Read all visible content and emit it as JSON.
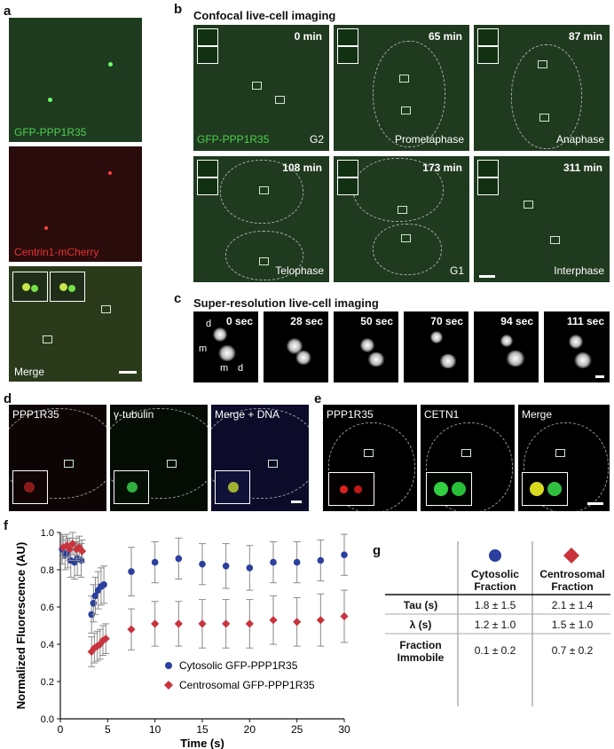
{
  "panels": {
    "a": "a",
    "b": "b",
    "c": "c",
    "d": "d",
    "e": "e",
    "f": "f",
    "g": "g"
  },
  "panel_a": {
    "labels": [
      "GFP-PPP1R35",
      "Centrin1-mCherry",
      "Merge"
    ]
  },
  "panel_b": {
    "title": "Confocal live-cell imaging",
    "channel_label": "GFP-PPP1R35",
    "frames": [
      {
        "time": "0 min",
        "phase": "G2"
      },
      {
        "time": "65 min",
        "phase": "Prometaphase"
      },
      {
        "time": "87 min",
        "phase": "Anaphase"
      },
      {
        "time": "108 min",
        "phase": "Telophase"
      },
      {
        "time": "173 min",
        "phase": "G1"
      },
      {
        "time": "311 min",
        "phase": "Interphase"
      }
    ]
  },
  "panel_c": {
    "title": "Super-resolution live-cell imaging",
    "frames": [
      "0 sec",
      "28 sec",
      "50 sec",
      "70 sec",
      "94 sec",
      "111 sec"
    ],
    "markers": {
      "d": "d",
      "m": "m"
    }
  },
  "panel_d": {
    "labels": [
      "PPP1R35",
      "γ-tubulin",
      "Merge + DNA"
    ]
  },
  "panel_e": {
    "labels": [
      "PPP1R35",
      "CETN1",
      "Merge"
    ]
  },
  "chart_data": {
    "type": "scatter",
    "xlabel": "Time (s)",
    "ylabel": "Normalized Fluorescence (AU)",
    "xlim": [
      0,
      30
    ],
    "ylim": [
      0.0,
      1.0
    ],
    "xticks": [
      0,
      5,
      10,
      15,
      20,
      25,
      30
    ],
    "yticks": [
      0.0,
      0.2,
      0.4,
      0.6,
      0.8,
      1.0
    ],
    "legend_position": "bottom-right",
    "series": [
      {
        "name": "Cytosolic GFP-PPP1R35",
        "color": "#2b3f9e",
        "marker": "circle",
        "x": [
          0.2,
          0.5,
          0.8,
          1.1,
          1.5,
          1.8,
          2.2,
          3.3,
          3.5,
          3.7,
          4.0,
          4.3,
          4.6,
          7.5,
          10,
          12.5,
          15,
          17.5,
          20,
          22.5,
          25,
          27.5,
          30
        ],
        "y": [
          0.91,
          0.88,
          0.89,
          0.85,
          0.84,
          0.86,
          0.85,
          0.56,
          0.62,
          0.66,
          0.69,
          0.71,
          0.72,
          0.79,
          0.84,
          0.86,
          0.83,
          0.82,
          0.81,
          0.84,
          0.84,
          0.85,
          0.88
        ],
        "err": [
          0.08,
          0.08,
          0.08,
          0.09,
          0.09,
          0.09,
          0.09,
          0.1,
          0.1,
          0.1,
          0.1,
          0.1,
          0.1,
          0.13,
          0.11,
          0.11,
          0.11,
          0.12,
          0.12,
          0.11,
          0.11,
          0.11,
          0.11
        ]
      },
      {
        "name": "Centrosomal GFP-PPP1R35",
        "color": "#c8333d",
        "marker": "diamond",
        "x": [
          0.3,
          0.7,
          1.0,
          1.3,
          1.7,
          2.0,
          2.3,
          3.3,
          3.6,
          3.9,
          4.2,
          4.5,
          4.8,
          7.5,
          10,
          12.5,
          15,
          17.5,
          20,
          22.5,
          25,
          27.5,
          30
        ],
        "y": [
          0.92,
          0.93,
          0.91,
          0.94,
          0.91,
          0.92,
          0.9,
          0.36,
          0.38,
          0.39,
          0.4,
          0.42,
          0.43,
          0.48,
          0.51,
          0.51,
          0.51,
          0.51,
          0.51,
          0.53,
          0.52,
          0.53,
          0.55
        ],
        "err": [
          0.06,
          0.06,
          0.06,
          0.06,
          0.06,
          0.06,
          0.06,
          0.08,
          0.08,
          0.08,
          0.08,
          0.08,
          0.08,
          0.11,
          0.12,
          0.12,
          0.13,
          0.13,
          0.13,
          0.13,
          0.13,
          0.14,
          0.14
        ]
      }
    ]
  },
  "panel_g": {
    "columns": [
      "Cytosolic Fraction",
      "Centrosomal Fraction"
    ],
    "rows": [
      {
        "label": "Tau (s)",
        "values": [
          "1.8 ± 1.5",
          "2.1 ± 1.4"
        ]
      },
      {
        "label": "λ (s)",
        "values": [
          "1.2 ± 1.0",
          "1.5 ± 1.0"
        ]
      },
      {
        "label": "Fraction Immobile",
        "values": [
          "0.1 ± 0.2",
          "0.7 ± 0.2"
        ]
      }
    ],
    "colors": {
      "cytosolic": "#2b3f9e",
      "centrosomal": "#c8333d"
    }
  }
}
